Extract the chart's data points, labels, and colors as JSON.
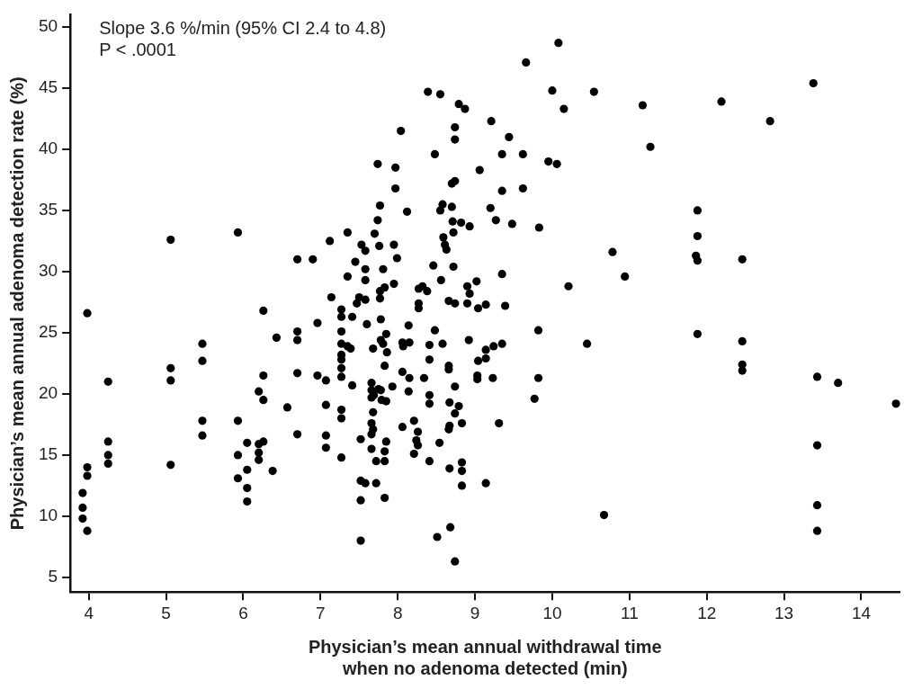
{
  "chart_data": {
    "type": "scatter",
    "xlabel": "Physician’s mean annual withdrawal time\nwhen no adenoma detected (min)",
    "ylabel": "Physician’s mean annual adenoma detection rate (%)",
    "annotations": [
      "Slope 3.6 %/min (95% CI 2.4 to 4.8)",
      "P < .0001"
    ],
    "xlim": [
      3.76,
      14.5
    ],
    "ylim": [
      3.8,
      51
    ],
    "xticks": [
      4,
      5,
      6,
      7,
      8,
      9,
      10,
      11,
      12,
      13,
      14
    ],
    "yticks": [
      5,
      10,
      15,
      20,
      25,
      30,
      35,
      40,
      45,
      50
    ],
    "grid": false,
    "legend": false,
    "marker": "circle",
    "series": [
      {
        "color": "#000000",
        "x": [
          3.98,
          4.25,
          5.06,
          5.06,
          5.47,
          5.47,
          4.25,
          4.25,
          4.25,
          5.06,
          5.47,
          5.47,
          3.98,
          3.98,
          3.92,
          3.92,
          3.92,
          3.98,
          5.93,
          5.93,
          5.93,
          6.05,
          6.05,
          6.05,
          6.05,
          6.2,
          6.2,
          6.2,
          6.26,
          6.38,
          6.2,
          6.26,
          6.26,
          6.26,
          6.43,
          6.57,
          6.7,
          6.7,
          6.7,
          6.7,
          6.96,
          6.96,
          7.07,
          7.07,
          7.07,
          7.07,
          7.27,
          7.27,
          7.27,
          7.27,
          7.27,
          7.27,
          7.27,
          7.27,
          7.27,
          7.27,
          7.27,
          5.06,
          5.93,
          6.7,
          6.9,
          7.12,
          7.14,
          7.35,
          7.35,
          10.08,
          9.66,
          8.39,
          8.55,
          10.0,
          10.54,
          8.79,
          8.87,
          10.15,
          9.21,
          8.04,
          8.74,
          8.74,
          9.44,
          8.48,
          9.35,
          9.62,
          7.74,
          7.97,
          9.95,
          10.06,
          9.06,
          8.74,
          8.7,
          7.97,
          9.35,
          9.62,
          7.77,
          8.12,
          8.58,
          8.55,
          8.7,
          9.2,
          7.74,
          8.71,
          8.82,
          8.93,
          9.27,
          9.48,
          9.83,
          7.7,
          8.72,
          8.59,
          8.61,
          8.63,
          7.53,
          7.58,
          7.76,
          7.95,
          7.99,
          7.45,
          7.58,
          7.58,
          7.81,
          8.46,
          8.72,
          9.35,
          10.78,
          10.21,
          7.95,
          7.83,
          7.77,
          7.77,
          7.5,
          7.58,
          7.47,
          8.56,
          8.27,
          8.32,
          8.38,
          8.27,
          8.27,
          8.66,
          8.74,
          8.9,
          8.93,
          9.02,
          8.9,
          9.04,
          9.14,
          9.39,
          13.38,
          11.17,
          12.19,
          12.82,
          11.27,
          11.88,
          11.88,
          11.86,
          11.88,
          12.46,
          10.94,
          10.67,
          11.88,
          12.46,
          12.46,
          12.46,
          13.43,
          13.7,
          14.45,
          13.43,
          13.43,
          13.43,
          7.41,
          7.6,
          7.78,
          8.14,
          8.48,
          9.82,
          7.85,
          7.78,
          7.81,
          7.68,
          7.39,
          7.35,
          7.86,
          8.06,
          8.15,
          8.07,
          8.41,
          8.58,
          8.92,
          9.35,
          9.24,
          9.14,
          10.45,
          8.41,
          7.83,
          8.66,
          8.66,
          9.04,
          9.14,
          9.03,
          9.03,
          9.23,
          9.82,
          8.06,
          8.15,
          8.34,
          7.41,
          7.66,
          7.93,
          7.66,
          7.69,
          7.75,
          7.78,
          7.66,
          7.79,
          7.85,
          8.14,
          8.74,
          8.41,
          8.41,
          8.67,
          8.79,
          8.74,
          7.68,
          7.66,
          7.68,
          7.66,
          8.21,
          8.06,
          8.26,
          8.24,
          8.26,
          8.21,
          8.67,
          8.66,
          8.83,
          9.31,
          7.52,
          7.66,
          7.85,
          7.83,
          7.83,
          7.72,
          8.54,
          8.41,
          8.67,
          8.83,
          8.83,
          8.83,
          9.14,
          7.52,
          7.58,
          7.72,
          7.52,
          7.83,
          7.52,
          8.51,
          8.68,
          8.74,
          9.77
        ],
        "values": [
          26.6,
          21.0,
          22.1,
          21.1,
          24.1,
          22.7,
          16.1,
          15.0,
          14.3,
          14.2,
          17.8,
          16.6,
          14.0,
          13.3,
          11.9,
          10.7,
          9.8,
          8.8,
          17.8,
          15.0,
          13.1,
          16.0,
          13.8,
          12.3,
          11.2,
          15.9,
          15.2,
          14.6,
          16.1,
          13.7,
          20.2,
          19.5,
          21.5,
          26.8,
          24.6,
          18.9,
          25.1,
          24.4,
          21.7,
          16.7,
          25.8,
          21.5,
          21.1,
          19.1,
          16.6,
          15.6,
          26.9,
          26.3,
          25.1,
          24.1,
          23.2,
          22.8,
          22.1,
          21.4,
          18.7,
          18.0,
          14.8,
          32.6,
          33.2,
          31.0,
          31.0,
          32.5,
          27.9,
          33.2,
          29.6,
          48.7,
          47.1,
          44.7,
          44.5,
          44.8,
          44.7,
          43.7,
          43.3,
          43.3,
          42.3,
          41.5,
          41.8,
          40.8,
          41.0,
          39.6,
          39.6,
          39.6,
          38.8,
          38.5,
          39.0,
          38.8,
          38.3,
          37.4,
          37.2,
          36.8,
          36.6,
          36.8,
          35.4,
          34.9,
          35.5,
          35.0,
          35.3,
          35.2,
          34.2,
          34.1,
          34.0,
          33.7,
          34.2,
          33.9,
          33.6,
          33.1,
          33.2,
          32.8,
          32.2,
          31.8,
          32.2,
          31.7,
          32.1,
          32.2,
          31.1,
          30.8,
          30.2,
          29.3,
          30.2,
          30.5,
          30.4,
          29.8,
          31.6,
          28.8,
          29.0,
          28.7,
          28.4,
          27.8,
          27.9,
          27.7,
          27.4,
          29.3,
          28.6,
          28.8,
          28.4,
          27.4,
          27.0,
          27.6,
          27.4,
          28.8,
          28.2,
          29.2,
          27.4,
          27.0,
          27.3,
          27.2,
          45.4,
          43.6,
          43.9,
          42.3,
          40.2,
          35.0,
          32.9,
          31.3,
          30.9,
          31.0,
          29.6,
          10.1,
          24.9,
          24.3,
          22.4,
          21.9,
          21.4,
          20.9,
          19.2,
          15.8,
          10.9,
          8.8,
          26.3,
          25.7,
          26.1,
          25.6,
          25.2,
          25.2,
          24.9,
          24.4,
          24.1,
          23.7,
          23.7,
          23.9,
          23.4,
          24.2,
          24.2,
          23.9,
          24.0,
          24.1,
          24.4,
          24.1,
          23.9,
          23.6,
          24.1,
          22.8,
          22.3,
          22.3,
          22.0,
          22.7,
          22.9,
          21.5,
          21.2,
          21.3,
          21.3,
          21.8,
          21.3,
          21.3,
          20.7,
          20.9,
          20.6,
          20.3,
          19.9,
          20.4,
          20.3,
          19.7,
          19.5,
          19.4,
          20.2,
          20.6,
          19.9,
          19.2,
          19.3,
          19.0,
          18.4,
          18.5,
          17.6,
          17.1,
          16.7,
          17.8,
          17.3,
          16.9,
          16.2,
          15.8,
          15.1,
          17.4,
          17.1,
          17.6,
          17.6,
          16.3,
          15.5,
          16.1,
          15.3,
          14.5,
          14.5,
          16.0,
          14.5,
          13.9,
          14.4,
          13.7,
          12.5,
          12.7,
          12.9,
          12.7,
          12.7,
          11.3,
          11.5,
          8.0,
          8.3,
          9.1,
          6.3,
          19.6
        ]
      }
    ]
  }
}
